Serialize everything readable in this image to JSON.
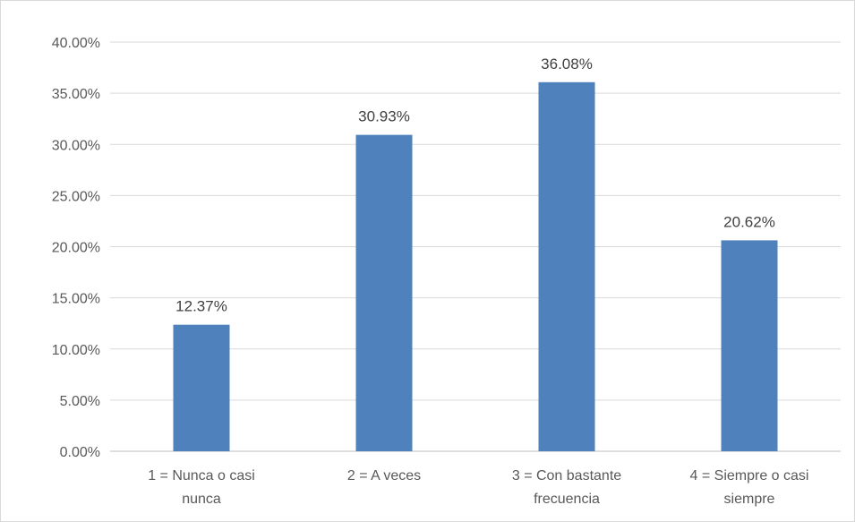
{
  "chart_data": {
    "type": "bar",
    "title": "",
    "xlabel": "",
    "ylabel": "",
    "categories": [
      [
        "1 = Nunca o casi",
        "nunca"
      ],
      [
        "2 = A veces"
      ],
      [
        "3 = Con bastante",
        "frecuencia"
      ],
      [
        "4 = Siempre o casi",
        "siempre"
      ]
    ],
    "values": [
      12.37,
      30.93,
      36.08,
      20.62
    ],
    "data_labels": [
      "12.37%",
      "30.93%",
      "36.08%",
      "20.62%"
    ],
    "ylim": [
      0,
      40
    ],
    "yticks": [
      0,
      5,
      10,
      15,
      20,
      25,
      30,
      35,
      40
    ],
    "ytick_labels": [
      "0.00%",
      "5.00%",
      "10.00%",
      "15.00%",
      "20.00%",
      "25.00%",
      "30.00%",
      "35.00%",
      "40.00%"
    ],
    "grid": true,
    "legend": "none",
    "bar_color": "#4f81bd"
  }
}
